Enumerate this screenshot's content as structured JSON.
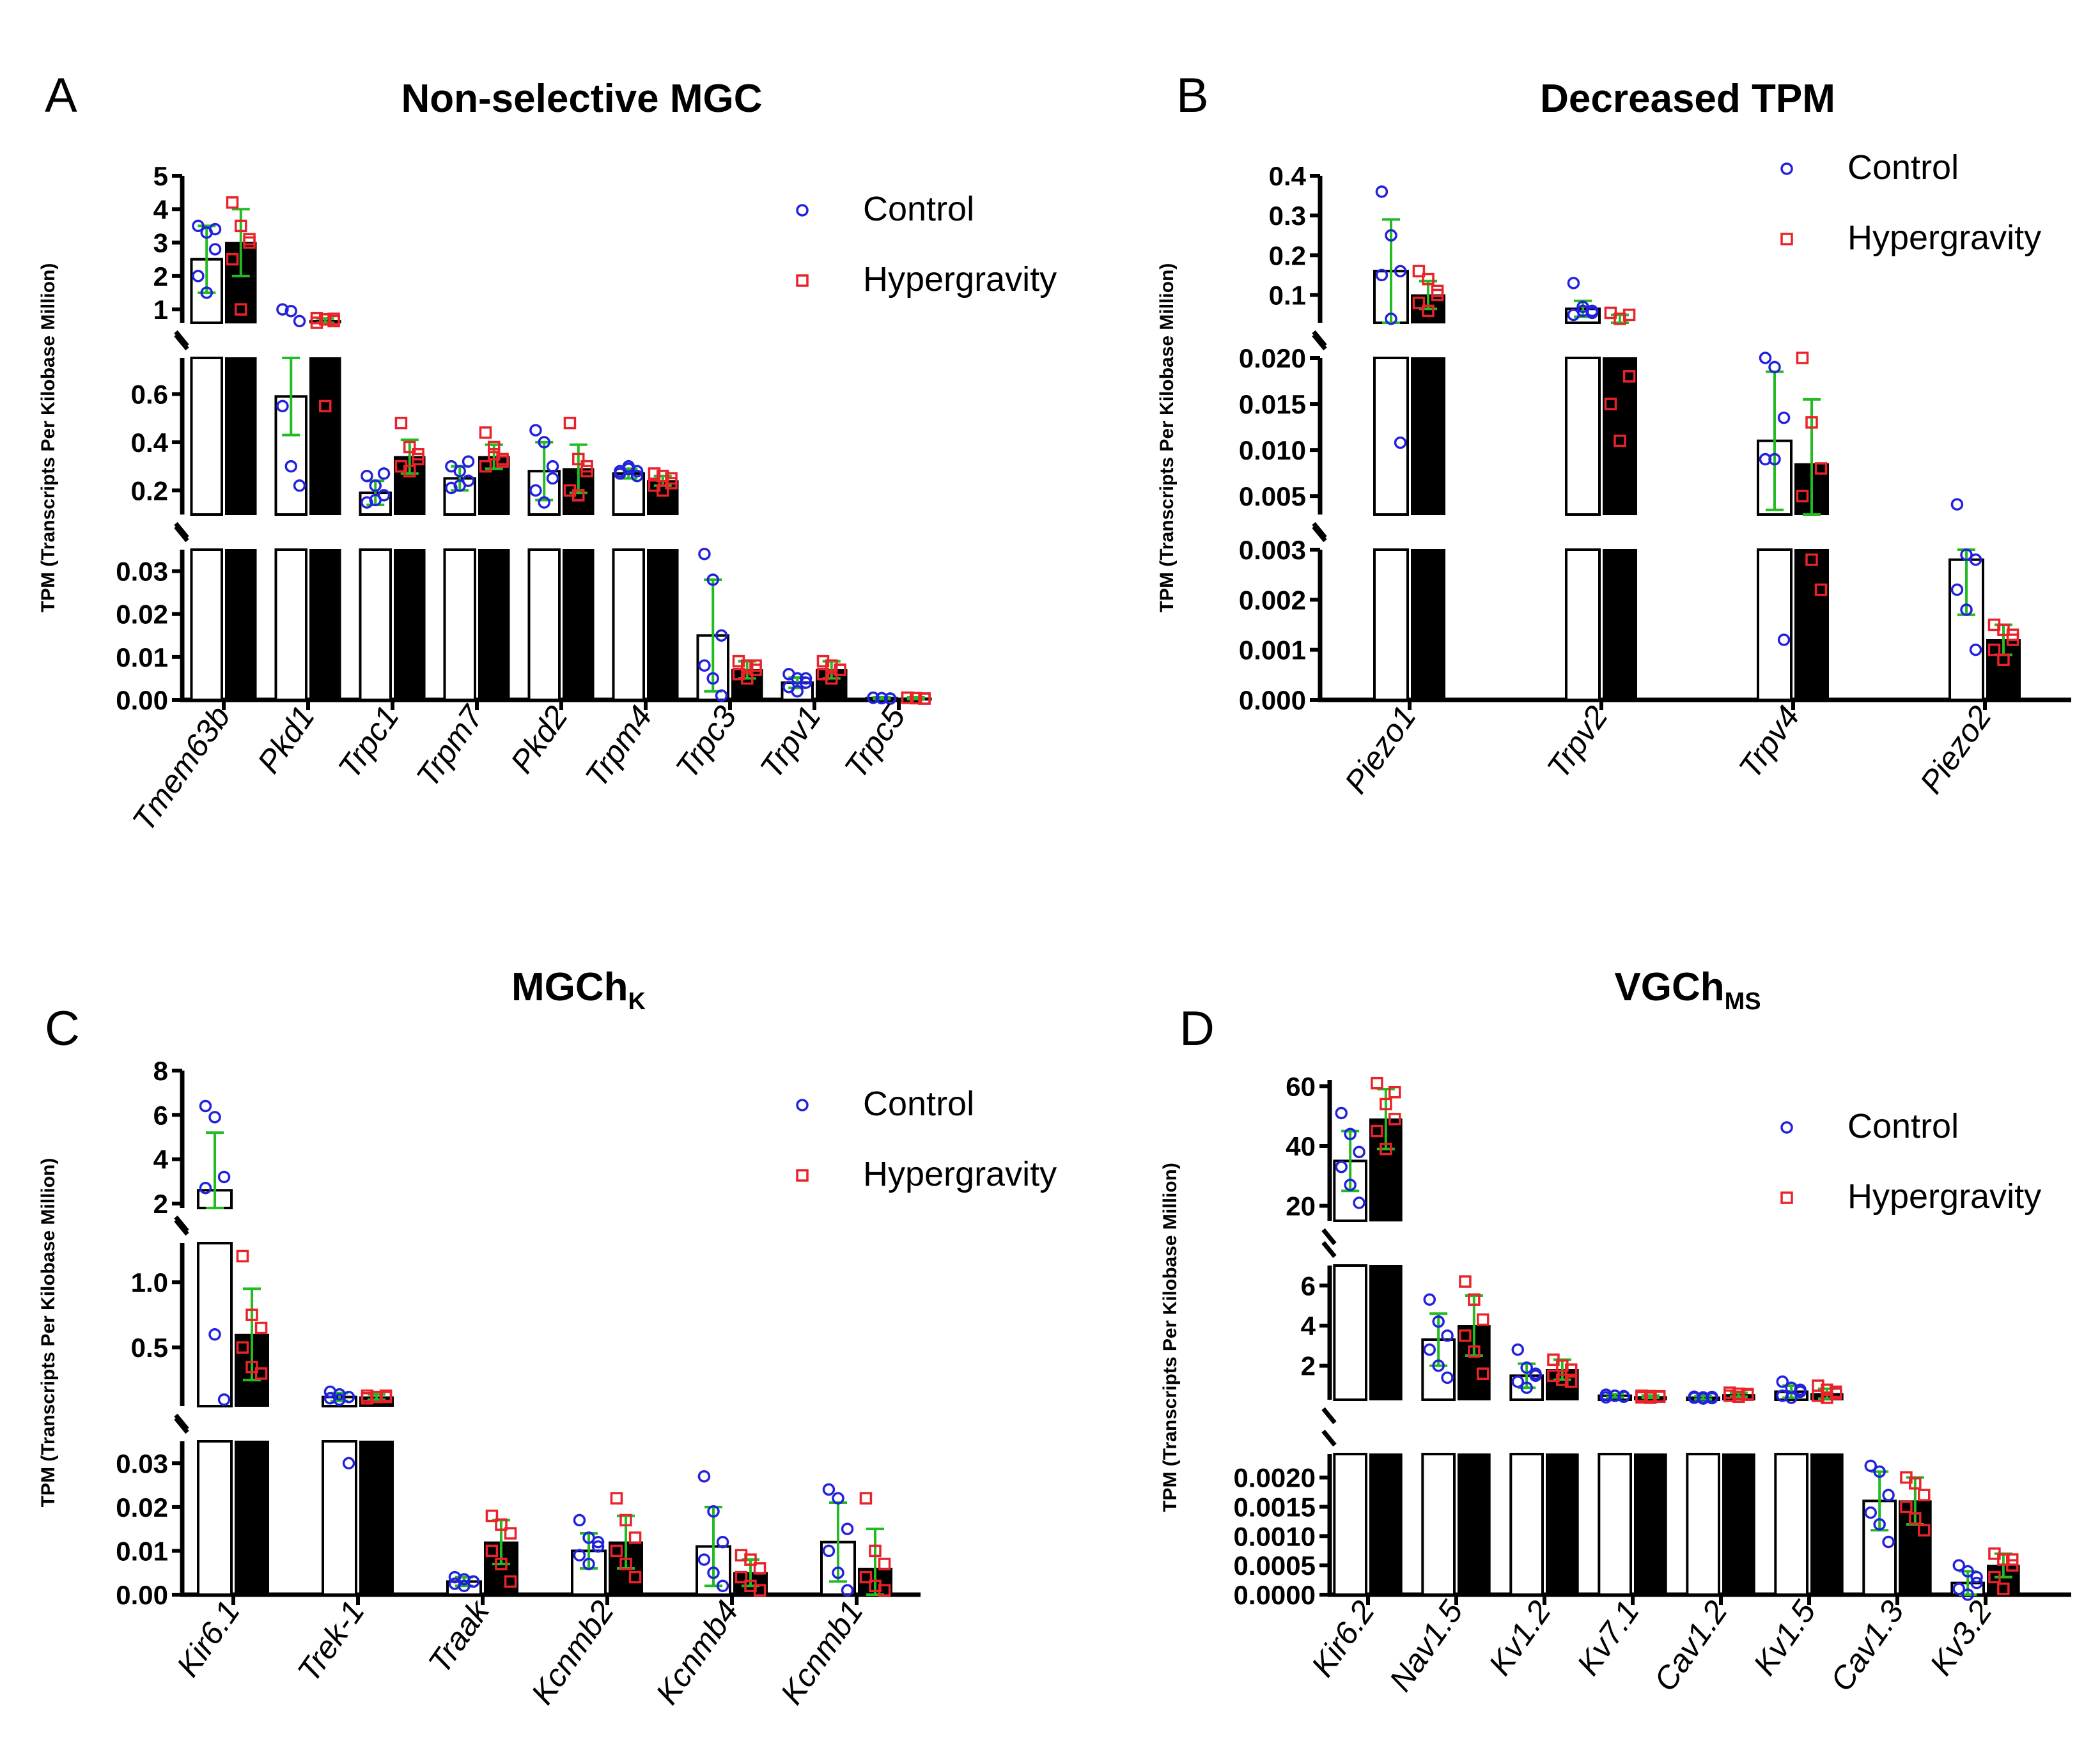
{
  "colors": {
    "control_marker": "#2222dd",
    "hyper_marker": "#e8232a",
    "error_bar": "#22bb22",
    "control_bar_fill": "#ffffff",
    "hyper_bar_fill": "#000000",
    "axis": "#000000"
  },
  "chart_data": [
    {
      "panel": "A",
      "title": "Non-selective MGC",
      "subscript": "",
      "type": "bar",
      "ylabel": "TPM (Transcripts Per Kilobase Million)",
      "legend": [
        "Control",
        "Hypergravity"
      ],
      "categories": [
        "Tmem63b",
        "Pkd1",
        "Trpc1",
        "Trpm7",
        "Pkd2",
        "Trpm4",
        "Trpc3",
        "Trpv1",
        "Trpc5"
      ],
      "segments": [
        {
          "range": [
            0.6,
            5
          ],
          "ticks": [
            "1",
            "2",
            "3",
            "4",
            "5"
          ],
          "tick_values": [
            1,
            2,
            3,
            4,
            5
          ]
        },
        {
          "range": [
            0.1,
            0.75
          ],
          "ticks": [
            "0.2",
            "0.4",
            "0.6"
          ],
          "tick_values": [
            0.2,
            0.4,
            0.6
          ]
        },
        {
          "range": [
            0,
            0.035
          ],
          "ticks": [
            "0.00",
            "0.01",
            "0.02",
            "0.03"
          ],
          "tick_values": [
            0,
            0.01,
            0.02,
            0.03
          ]
        }
      ],
      "series": [
        {
          "name": "Control",
          "means": [
            2.5,
            0.59,
            0.19,
            0.25,
            0.28,
            0.27,
            0.015,
            0.004,
            0.0004
          ],
          "sd": [
            1.0,
            0.16,
            0.05,
            0.05,
            0.12,
            0.02,
            0.013,
            0.0012,
            0.0002
          ],
          "points": [
            [
              3.5,
              3.3,
              2.8,
              2.0,
              1.5,
              3.4
            ],
            [
              1.0,
              0.95,
              0.65,
              0.55,
              0.3,
              0.22
            ],
            [
              0.26,
              0.22,
              0.18,
              0.15,
              0.16,
              0.27
            ],
            [
              0.3,
              0.28,
              0.24,
              0.21,
              0.22,
              0.32
            ],
            [
              0.45,
              0.4,
              0.3,
              0.2,
              0.15,
              0.25
            ],
            [
              0.28,
              0.3,
              0.26,
              0.27,
              0.29,
              0.28
            ],
            [
              0.034,
              0.028,
              0.015,
              0.008,
              0.005,
              0.001
            ],
            [
              0.006,
              0.005,
              0.004,
              0.003,
              0.002,
              0.005
            ],
            [
              0.0005,
              0.0004,
              0.0003,
              0.0005,
              0.0004,
              0.0003
            ]
          ]
        },
        {
          "name": "Hypergravity",
          "means": [
            3.0,
            0.66,
            0.34,
            0.34,
            0.29,
            0.24,
            0.007,
            0.007,
            0.0004
          ],
          "sd": [
            1.0,
            0.07,
            0.07,
            0.05,
            0.1,
            0.02,
            0.002,
            0.002,
            0.0002
          ],
          "points": [
            [
              4.2,
              3.5,
              3.0,
              2.5,
              1.0,
              3.1
            ],
            [
              0.74,
              0.7,
              0.65,
              0.6,
              0.55,
              0.72
            ],
            [
              0.48,
              0.38,
              0.33,
              0.3,
              0.28,
              0.35
            ],
            [
              0.44,
              0.38,
              0.33,
              0.3,
              0.35,
              0.32
            ],
            [
              0.48,
              0.33,
              0.28,
              0.2,
              0.18,
              0.3
            ],
            [
              0.27,
              0.26,
              0.23,
              0.22,
              0.2,
              0.25
            ],
            [
              0.009,
              0.008,
              0.007,
              0.006,
              0.005,
              0.008
            ],
            [
              0.009,
              0.008,
              0.007,
              0.006,
              0.005,
              0.007
            ],
            [
              0.0005,
              0.0004,
              0.0003,
              0.0005,
              0.0004,
              0.0003
            ]
          ]
        }
      ]
    },
    {
      "panel": "B",
      "title": "Decreased TPM",
      "subscript": "",
      "type": "bar",
      "ylabel": "TPM (Transcripts Per Kilobase Million)",
      "legend": [
        "Control",
        "Hypergravity"
      ],
      "categories": [
        "Piezo1",
        "Trpv2",
        "Trpv4",
        "Piezo2"
      ],
      "segments": [
        {
          "range": [
            0.03,
            0.4
          ],
          "ticks": [
            "0.1",
            "0.2",
            "0.3",
            "0.4"
          ],
          "tick_values": [
            0.1,
            0.2,
            0.3,
            0.4
          ]
        },
        {
          "range": [
            0.003,
            0.02
          ],
          "ticks": [
            "0.005",
            "0.010",
            "0.015",
            "0.020"
          ],
          "tick_values": [
            0.005,
            0.01,
            0.015,
            0.02
          ]
        },
        {
          "range": [
            0,
            0.003
          ],
          "ticks": [
            "0.000",
            "0.001",
            "0.002",
            "0.003"
          ],
          "tick_values": [
            0,
            0.001,
            0.002,
            0.003
          ]
        }
      ],
      "series": [
        {
          "name": "Control",
          "means": [
            0.16,
            0.065,
            0.011,
            0.0028
          ],
          "sd": [
            0.13,
            0.02,
            0.0075,
            0.0011
          ],
          "points": [
            [
              0.36,
              0.25,
              0.16,
              0.15,
              0.04,
              0.0108
            ],
            [
              0.13,
              0.07,
              0.06,
              0.05,
              0.06,
              0.055
            ],
            [
              0.022,
              0.019,
              0.0135,
              0.009,
              0.009,
              0.0012
            ],
            [
              0.0041,
              0.0029,
              0.0028,
              0.0022,
              0.0018,
              0.001
            ]
          ]
        },
        {
          "name": "Hypergravity",
          "means": [
            0.1,
            0.03,
            0.0085,
            0.0012
          ],
          "sd": [
            0.035,
            0.02,
            0.007,
            0.0003
          ],
          "points": [
            [
              0.16,
              0.14,
              0.1,
              0.08,
              0.06,
              0.11
            ],
            [
              0.055,
              0.04,
              0.018,
              0.015,
              0.011,
              0.05
            ],
            [
              0.02,
              0.013,
              0.008,
              0.005,
              0.0028,
              0.0022
            ],
            [
              0.0015,
              0.0014,
              0.0012,
              0.001,
              0.0008,
              0.0013
            ]
          ]
        }
      ]
    },
    {
      "panel": "C",
      "title": "MGCh",
      "subscript": "K",
      "type": "bar",
      "ylabel": "TPM (Transcripts Per Kilobase Million)",
      "legend": [
        "Control",
        "Hypergravity"
      ],
      "categories": [
        "Kir6.1",
        "Trek-1",
        "Traak",
        "Kcnmb2",
        "Kcnmb4",
        "Kcnmb1"
      ],
      "segments": [
        {
          "range": [
            1.8,
            8
          ],
          "ticks": [
            "2",
            "4",
            "6",
            "8"
          ],
          "tick_values": [
            2,
            4,
            6,
            8
          ]
        },
        {
          "range": [
            0.05,
            1.3
          ],
          "ticks": [
            "0.5",
            "1.0"
          ],
          "tick_values": [
            0.5,
            1.0
          ]
        },
        {
          "range": [
            0,
            0.035
          ],
          "ticks": [
            "0.00",
            "0.01",
            "0.02",
            "0.03"
          ],
          "tick_values": [
            0,
            0.01,
            0.02,
            0.03
          ]
        }
      ],
      "series": [
        {
          "name": "Control",
          "means": [
            2.6,
            0.12,
            0.003,
            0.01,
            0.011,
            0.012
          ],
          "sd": [
            2.6,
            0.03,
            0.001,
            0.004,
            0.009,
            0.009
          ],
          "points": [
            [
              6.4,
              5.9,
              3.2,
              2.7,
              0.6,
              0.1
            ],
            [
              0.16,
              0.14,
              0.12,
              0.11,
              0.1,
              0.03
            ],
            [
              0.004,
              0.0035,
              0.003,
              0.0025,
              0.002,
              0.003
            ],
            [
              0.017,
              0.013,
              0.011,
              0.009,
              0.007,
              0.012
            ],
            [
              0.027,
              0.019,
              0.012,
              0.008,
              0.005,
              0.002
            ],
            [
              0.024,
              0.022,
              0.015,
              0.01,
              0.005,
              0.001
            ]
          ]
        },
        {
          "name": "Hypergravity",
          "means": [
            0.6,
            0.12,
            0.012,
            0.012,
            0.005,
            0.006
          ],
          "sd": [
            0.35,
            0.02,
            0.005,
            0.006,
            0.003,
            0.009
          ],
          "points": [
            [
              1.2,
              0.75,
              0.65,
              0.5,
              0.35,
              0.3
            ],
            [
              0.13,
              0.12,
              0.12,
              0.11,
              0.12,
              0.13
            ],
            [
              0.018,
              0.016,
              0.014,
              0.01,
              0.007,
              0.003
            ],
            [
              0.022,
              0.017,
              0.013,
              0.01,
              0.007,
              0.004
            ],
            [
              0.009,
              0.008,
              0.006,
              0.004,
              0.002,
              0.001
            ],
            [
              0.022,
              0.01,
              0.007,
              0.004,
              0.002,
              0.001
            ]
          ]
        }
      ]
    },
    {
      "panel": "D",
      "title": "VGCh",
      "subscript": "MS",
      "type": "bar",
      "ylabel": "TPM (Transcripts Per Kilobase Million)",
      "legend": [
        "Control",
        "Hypergravity"
      ],
      "categories": [
        "Kir6.2",
        "Nav1.5",
        "Kv1.2",
        "Kv7.1",
        "Cav1.2",
        "Kv1.5",
        "Cav1.3",
        "Kv3.2"
      ],
      "segments": [
        {
          "range": [
            15,
            62
          ],
          "ticks": [
            "20",
            "40",
            "60"
          ],
          "tick_values": [
            20,
            40,
            60
          ]
        },
        {
          "range": [
            0.3,
            7
          ],
          "ticks": [
            "2",
            "4",
            "6"
          ],
          "tick_values": [
            2,
            4,
            6
          ]
        },
        {
          "range": [
            0,
            0.0024
          ],
          "ticks": [
            "0.0000",
            "0.0005",
            "0.0010",
            "0.0015",
            "0.0020"
          ],
          "tick_values": [
            0,
            0.0005,
            0.001,
            0.0015,
            0.002
          ]
        }
      ],
      "series": [
        {
          "name": "Control",
          "means": [
            35,
            3.3,
            1.5,
            0.5,
            0.4,
            0.7,
            0.0016,
            0.0002
          ],
          "sd": [
            10,
            1.3,
            0.6,
            0.08,
            0.08,
            0.3,
            0.0005,
            0.0002
          ],
          "points": [
            [
              51,
              44,
              38,
              33,
              27,
              21
            ],
            [
              5.3,
              4.2,
              3.5,
              2.8,
              2.0,
              1.4
            ],
            [
              2.8,
              1.9,
              1.5,
              1.2,
              0.9,
              1.6
            ],
            [
              0.55,
              0.5,
              0.45,
              0.42,
              0.5,
              0.48
            ],
            [
              0.45,
              0.42,
              0.38,
              0.4,
              0.36,
              0.44
            ],
            [
              1.2,
              0.9,
              0.7,
              0.5,
              0.4,
              0.8
            ],
            [
              0.0022,
              0.0021,
              0.0017,
              0.0014,
              0.0012,
              0.0009
            ],
            [
              0.0005,
              0.0004,
              0.0002,
              0.0001,
              0.0,
              0.0003
            ]
          ]
        },
        {
          "name": "Hypergravity",
          "means": [
            49,
            4.0,
            1.8,
            0.45,
            0.55,
            0.6,
            0.0016,
            0.0005
          ],
          "sd": [
            10,
            1.5,
            0.5,
            0.06,
            0.1,
            0.25,
            0.0004,
            0.0002
          ],
          "points": [
            [
              61,
              54,
              49,
              45,
              39,
              58
            ],
            [
              6.2,
              5.3,
              4.3,
              3.5,
              2.7,
              1.6
            ],
            [
              2.3,
              2.0,
              1.8,
              1.5,
              1.3,
              1.2
            ],
            [
              0.5,
              0.48,
              0.45,
              0.42,
              0.4,
              0.47
            ],
            [
              0.65,
              0.6,
              0.55,
              0.5,
              0.45,
              0.58
            ],
            [
              1.0,
              0.8,
              0.6,
              0.5,
              0.4,
              0.7
            ],
            [
              0.002,
              0.0019,
              0.0017,
              0.0015,
              0.0013,
              0.0011
            ],
            [
              0.0007,
              0.0006,
              0.0005,
              0.0003,
              0.0001,
              0.0006
            ]
          ]
        }
      ]
    }
  ]
}
